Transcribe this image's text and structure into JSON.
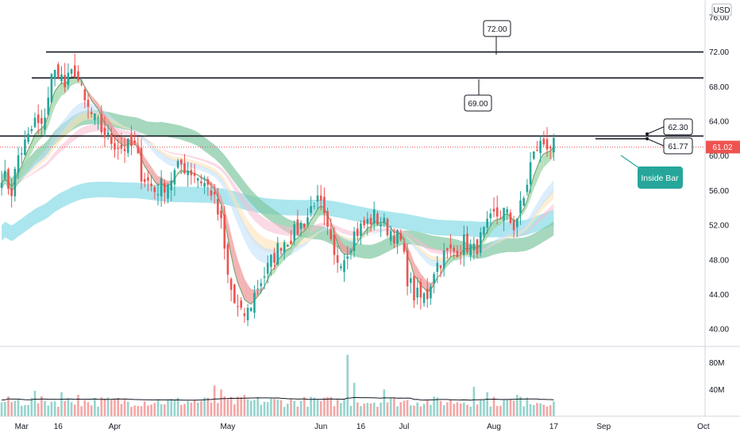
{
  "chart_data": {
    "type": "candlestick",
    "currency": "USD",
    "price_axis": {
      "ylim": [
        38,
        78
      ],
      "ticks": [
        "76.00",
        "72.00",
        "68.00",
        "64.00",
        "60.00",
        "56.00",
        "52.00",
        "48.00",
        "44.00",
        "40.00"
      ],
      "tick_values": [
        76,
        72,
        68,
        64,
        60,
        56,
        52,
        48,
        44,
        40
      ]
    },
    "volume_axis": {
      "ylim": [
        0,
        95
      ],
      "ticks": [
        "80M",
        "40M"
      ],
      "tick_values": [
        80,
        40
      ]
    },
    "time_axis": {
      "labels": [
        "Mar",
        "16",
        "Apr",
        "May",
        "Jun",
        "16",
        "Jul",
        "Aug",
        "17",
        "Sep",
        "Oct"
      ],
      "label_bar_index": [
        6,
        17,
        34,
        68,
        96,
        108,
        121,
        148,
        166,
        181,
        211
      ]
    },
    "current_price": {
      "value": 61.02,
      "label": "61.02",
      "color": "#ef5350"
    },
    "horizontal_levels": [
      {
        "value": 72.0,
        "label": "72.00"
      },
      {
        "value": 69.0,
        "label": "69.00"
      },
      {
        "value": 62.3,
        "label": "62.30"
      }
    ],
    "level_callouts": [
      {
        "value": 61.77,
        "label": "61.77"
      }
    ],
    "annotation": {
      "text": "Inside Bar",
      "color": "#26a69a"
    },
    "colors": {
      "up": "#26a69a",
      "down": "#ef5350",
      "up_volume": "#94d4cd",
      "down_volume": "#f4a6a5",
      "ribbon_fast_up": "#9fd5a6",
      "ribbon_fast_down": "#ef9a9a",
      "ribbon_mid_light": "#bde0fe",
      "ribbon_mid_orange": "#fde2b8",
      "ribbon_pink": "#f8bbd0",
      "ribbon_slow_green": "#80c7a3",
      "ribbon_slow_cyan": "#8fdde8"
    },
    "waypoints": [
      [
        0,
        58
      ],
      [
        3,
        56
      ],
      [
        5,
        60
      ],
      [
        8,
        62
      ],
      [
        10,
        64
      ],
      [
        12,
        63
      ],
      [
        15,
        69
      ],
      [
        17,
        70
      ],
      [
        19,
        68
      ],
      [
        22,
        70
      ],
      [
        25,
        66
      ],
      [
        28,
        64
      ],
      [
        32,
        62
      ],
      [
        36,
        61
      ],
      [
        40,
        61
      ],
      [
        42,
        58
      ],
      [
        46,
        56
      ],
      [
        50,
        57
      ],
      [
        54,
        59
      ],
      [
        58,
        58
      ],
      [
        63,
        56
      ],
      [
        66,
        52
      ],
      [
        68,
        46
      ],
      [
        70,
        43
      ],
      [
        72,
        41.5
      ],
      [
        74,
        42
      ],
      [
        77,
        45
      ],
      [
        80,
        47
      ],
      [
        84,
        50
      ],
      [
        88,
        51
      ],
      [
        92,
        53
      ],
      [
        94,
        55
      ],
      [
        96,
        54
      ],
      [
        98,
        51
      ],
      [
        100,
        48
      ],
      [
        103,
        48.5
      ],
      [
        106,
        51
      ],
      [
        109,
        52
      ],
      [
        112,
        53
      ],
      [
        115,
        52
      ],
      [
        118,
        51
      ],
      [
        120,
        50
      ],
      [
        122,
        46
      ],
      [
        124,
        44
      ],
      [
        126,
        43.5
      ],
      [
        128,
        44
      ],
      [
        130,
        47
      ],
      [
        133,
        48.5
      ],
      [
        136,
        49
      ],
      [
        139,
        50
      ],
      [
        142,
        49
      ],
      [
        145,
        51
      ],
      [
        148,
        53
      ],
      [
        151,
        53.5
      ],
      [
        154,
        52
      ],
      [
        157,
        55
      ],
      [
        159,
        59
      ],
      [
        161,
        61
      ],
      [
        163,
        61.5
      ],
      [
        165,
        61.3
      ],
      [
        166,
        61
      ]
    ],
    "bar_count": 167,
    "projected_bar_count": 212,
    "volume_average": 28,
    "volume_spikes": [
      [
        10,
        38
      ],
      [
        18,
        36
      ],
      [
        23,
        32
      ],
      [
        64,
        46
      ],
      [
        66,
        40
      ],
      [
        73,
        32
      ],
      [
        94,
        28
      ],
      [
        104,
        92
      ],
      [
        106,
        50
      ],
      [
        115,
        40
      ],
      [
        142,
        44
      ],
      [
        146,
        36
      ],
      [
        155,
        32
      ],
      [
        158,
        28
      ]
    ]
  }
}
